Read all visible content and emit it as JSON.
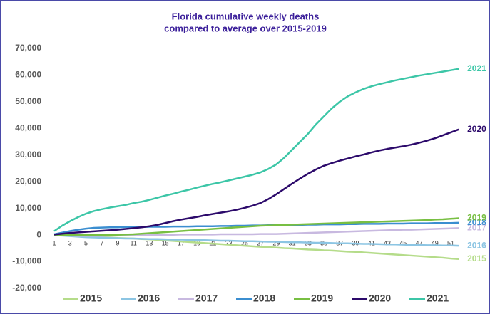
{
  "chart_data": {
    "type": "line",
    "title": [
      "Florida cumulative weekly deaths",
      "compared to average over 2015-2019"
    ],
    "categories": [
      1,
      null,
      3,
      null,
      5,
      null,
      7,
      null,
      9,
      null,
      11,
      null,
      13,
      null,
      15,
      null,
      17,
      null,
      19,
      null,
      21,
      null,
      23,
      null,
      25,
      null,
      27,
      null,
      29,
      null,
      31,
      null,
      33,
      null,
      35,
      null,
      37,
      null,
      39,
      null,
      41,
      null,
      43,
      null,
      45,
      null,
      47,
      null,
      49,
      null,
      51,
      null
    ],
    "ylim": [
      -20000,
      70000
    ],
    "yticks": [
      {
        "value": -20000,
        "label": "-20,000"
      },
      {
        "value": -10000,
        "label": "-10,000"
      },
      0,
      {
        "value": 10000,
        "label": "10,000"
      },
      {
        "value": 20000,
        "label": "20,000"
      },
      {
        "value": 30000,
        "label": "30,000"
      },
      {
        "value": 40000,
        "label": "40,000"
      },
      {
        "value": 50000,
        "label": "50,000"
      },
      {
        "value": 60000,
        "label": "60,000"
      },
      {
        "value": 70000,
        "label": "70,000"
      }
    ],
    "grid": false,
    "legend": "bottom",
    "series": [
      {
        "name": "2015",
        "color": "#b5dc8a",
        "values": [
          0,
          -100,
          -300,
          -400,
          -500,
          -700,
          -800,
          -900,
          -1100,
          -1200,
          -1300,
          -1500,
          -1600,
          -1800,
          -2000,
          -2200,
          -2400,
          -2600,
          -2800,
          -3000,
          -3200,
          -3400,
          -3600,
          -3800,
          -4000,
          -4200,
          -4400,
          -4500,
          -4700,
          -4900,
          -5000,
          -5200,
          -5400,
          -5500,
          -5700,
          -5800,
          -6000,
          -6200,
          -6300,
          -6500,
          -6700,
          -6900,
          -7100,
          -7300,
          -7500,
          -7700,
          -7900,
          -8100,
          -8300,
          -8500,
          -8800,
          -9000
        ]
      },
      {
        "name": "2016",
        "color": "#8cc5e3",
        "values": [
          0,
          -200,
          -400,
          -600,
          -800,
          -900,
          -1000,
          -1100,
          -1200,
          -1300,
          -1300,
          -1400,
          -1500,
          -1500,
          -1600,
          -1700,
          -1700,
          -1800,
          -1900,
          -1900,
          -2000,
          -2100,
          -2100,
          -2200,
          -2300,
          -2300,
          -2400,
          -2500,
          -2500,
          -2600,
          -2700,
          -2700,
          -2800,
          -2900,
          -2900,
          -3000,
          -3100,
          -3100,
          -3200,
          -3300,
          -3300,
          -3400,
          -3500,
          -3500,
          -3600,
          -3700,
          -3700,
          -3800,
          -3800,
          -3900,
          -3900,
          -4000
        ]
      },
      {
        "name": "2017",
        "color": "#c8b9e0",
        "values": [
          0,
          -100,
          -200,
          -300,
          -300,
          -300,
          -300,
          -200,
          -200,
          -100,
          0,
          0,
          0,
          100,
          100,
          100,
          200,
          200,
          200,
          200,
          200,
          300,
          300,
          300,
          300,
          300,
          400,
          400,
          400,
          500,
          600,
          700,
          800,
          900,
          1000,
          1100,
          1200,
          1300,
          1400,
          1500,
          1600,
          1700,
          1800,
          1900,
          2000,
          2000,
          2100,
          2200,
          2300,
          2400,
          2500,
          2600
        ]
      },
      {
        "name": "2018",
        "color": "#3b8ed0",
        "values": [
          300,
          900,
          1500,
          2000,
          2400,
          2700,
          2800,
          2900,
          2900,
          3000,
          3000,
          3000,
          3100,
          3100,
          3100,
          3200,
          3200,
          3200,
          3300,
          3300,
          3300,
          3400,
          3400,
          3500,
          3500,
          3600,
          3600,
          3700,
          3700,
          3800,
          3800,
          3800,
          3900,
          3900,
          4000,
          4000,
          4000,
          4100,
          4100,
          4200,
          4200,
          4200,
          4300,
          4300,
          4300,
          4400,
          4400,
          4400,
          4500,
          4500,
          4500,
          4600
        ]
      },
      {
        "name": "2019",
        "color": "#78bf42",
        "values": [
          0,
          0,
          0,
          0,
          0,
          0,
          0,
          0,
          100,
          200,
          300,
          500,
          700,
          900,
          1100,
          1300,
          1500,
          1700,
          1900,
          2100,
          2300,
          2500,
          2700,
          2900,
          3100,
          3300,
          3500,
          3600,
          3700,
          3800,
          3900,
          4000,
          4100,
          4200,
          4300,
          4400,
          4500,
          4600,
          4700,
          4800,
          4900,
          5000,
          5100,
          5200,
          5300,
          5400,
          5500,
          5600,
          5800,
          5900,
          6100,
          6300
        ]
      },
      {
        "name": "2020",
        "color": "#2c0a6b",
        "values": [
          200,
          500,
          800,
          1000,
          1200,
          1400,
          1600,
          1800,
          2000,
          2300,
          2600,
          2900,
          3300,
          3800,
          4500,
          5200,
          5800,
          6300,
          6800,
          7400,
          7900,
          8400,
          8900,
          9500,
          10200,
          11000,
          12000,
          13500,
          15300,
          17300,
          19300,
          21200,
          23000,
          24600,
          26000,
          27000,
          27900,
          28700,
          29500,
          30200,
          31000,
          31700,
          32300,
          32800,
          33300,
          33900,
          34600,
          35400,
          36300,
          37400,
          38500,
          39600
        ]
      },
      {
        "name": "2021",
        "color": "#3cc6a7",
        "values": [
          1500,
          3500,
          5200,
          6700,
          8000,
          9000,
          9700,
          10300,
          10800,
          11300,
          12000,
          12500,
          13200,
          14000,
          14800,
          15500,
          16300,
          17000,
          17800,
          18500,
          19200,
          19800,
          20500,
          21200,
          21900,
          22600,
          23500,
          24800,
          26500,
          29000,
          32000,
          35000,
          38000,
          41500,
          44500,
          47500,
          50000,
          52000,
          53500,
          54800,
          55800,
          56600,
          57300,
          58000,
          58600,
          59200,
          59800,
          60300,
          60800,
          61300,
          61800,
          62300
        ]
      }
    ]
  }
}
